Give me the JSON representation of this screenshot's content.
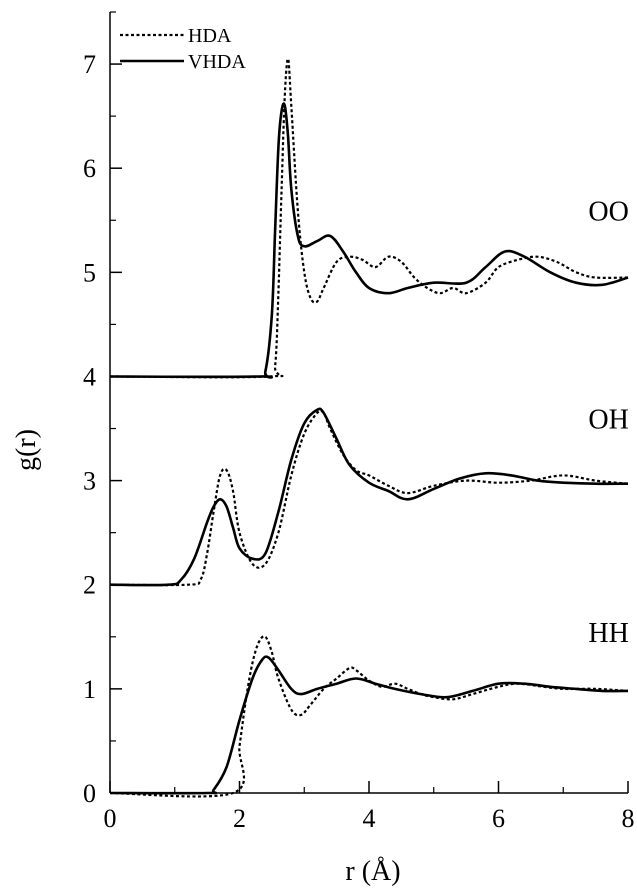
{
  "chart_data": {
    "type": "line",
    "xlabel": "r (Å)",
    "ylabel": "g(r)",
    "xlim": [
      0,
      8
    ],
    "ylim": [
      0,
      7.5
    ],
    "x_ticks": [
      0,
      2,
      4,
      6,
      8
    ],
    "y_ticks": [
      0,
      1,
      2,
      3,
      4,
      5,
      6,
      7
    ],
    "grid": false,
    "legend_position": "top-left",
    "annotations": [
      {
        "text": "OO",
        "x": 7.7,
        "y": 5.5
      },
      {
        "text": "OH",
        "x": 7.7,
        "y": 3.5
      },
      {
        "text": "HH",
        "x": 7.7,
        "y": 1.45
      }
    ],
    "series": [
      {
        "name": "HDA",
        "style": "dotted",
        "group": "OO",
        "x": [
          0,
          2.45,
          2.55,
          2.6,
          2.65,
          2.7,
          2.75,
          2.8,
          2.9,
          3.0,
          3.1,
          3.2,
          3.3,
          3.5,
          3.7,
          3.9,
          4.1,
          4.3,
          4.5,
          4.7,
          4.9,
          5.1,
          5.3,
          5.5,
          5.8,
          6.0,
          6.3,
          6.6,
          6.9,
          7.2,
          7.5,
          8.0
        ],
        "y": [
          4,
          4,
          4.1,
          4.8,
          5.8,
          6.7,
          7.05,
          6.6,
          5.6,
          5.0,
          4.75,
          4.72,
          4.85,
          5.1,
          5.15,
          5.12,
          5.05,
          5.15,
          5.1,
          4.95,
          4.85,
          4.8,
          4.85,
          4.8,
          4.9,
          5.05,
          5.12,
          5.15,
          5.1,
          5.0,
          4.95,
          4.95
        ]
      },
      {
        "name": "VHDA",
        "style": "solid",
        "group": "OO",
        "x": [
          0,
          2.3,
          2.4,
          2.5,
          2.55,
          2.6,
          2.65,
          2.7,
          2.75,
          2.8,
          2.9,
          3.0,
          3.2,
          3.4,
          3.6,
          3.8,
          4.0,
          4.3,
          4.6,
          5.0,
          5.5,
          5.8,
          6.1,
          6.4,
          6.8,
          7.2,
          7.6,
          8.0
        ],
        "y": [
          4,
          4,
          4.05,
          4.6,
          5.4,
          6.2,
          6.55,
          6.6,
          6.3,
          5.8,
          5.35,
          5.25,
          5.3,
          5.35,
          5.2,
          5.0,
          4.85,
          4.8,
          4.85,
          4.9,
          4.9,
          5.05,
          5.2,
          5.15,
          5.0,
          4.9,
          4.88,
          4.95
        ]
      },
      {
        "name": "HDA",
        "style": "dotted",
        "group": "OH",
        "x": [
          0,
          1.2,
          1.4,
          1.5,
          1.6,
          1.7,
          1.8,
          1.9,
          2.0,
          2.2,
          2.4,
          2.6,
          2.8,
          3.0,
          3.2,
          3.3,
          3.4,
          3.6,
          3.8,
          4.0,
          4.3,
          4.6,
          5.0,
          5.5,
          6.0,
          6.5,
          7.0,
          7.5,
          8.0
        ],
        "y": [
          2,
          2,
          2.05,
          2.3,
          2.7,
          3.05,
          3.1,
          2.9,
          2.5,
          2.2,
          2.2,
          2.5,
          3.05,
          3.45,
          3.65,
          3.65,
          3.5,
          3.25,
          3.1,
          3.05,
          2.95,
          2.88,
          2.95,
          3.0,
          2.98,
          3.0,
          3.05,
          3.0,
          2.97
        ]
      },
      {
        "name": "VHDA",
        "style": "solid",
        "group": "OH",
        "x": [
          0,
          0.9,
          1.1,
          1.3,
          1.5,
          1.6,
          1.7,
          1.8,
          1.9,
          2.0,
          2.2,
          2.4,
          2.6,
          2.8,
          3.0,
          3.2,
          3.3,
          3.5,
          3.7,
          4.0,
          4.3,
          4.6,
          5.0,
          5.4,
          5.8,
          6.2,
          6.6,
          7.0,
          7.5,
          8.0
        ],
        "y": [
          2,
          2,
          2.05,
          2.25,
          2.6,
          2.75,
          2.82,
          2.75,
          2.55,
          2.35,
          2.25,
          2.3,
          2.7,
          3.2,
          3.55,
          3.68,
          3.65,
          3.4,
          3.15,
          2.98,
          2.9,
          2.82,
          2.92,
          3.02,
          3.07,
          3.05,
          3.0,
          2.98,
          2.97,
          2.97
        ]
      },
      {
        "name": "HDA",
        "style": "dotted",
        "group": "HH",
        "x": [
          0,
          1.9,
          2.0,
          2.1,
          2.2,
          2.3,
          2.4,
          2.5,
          2.6,
          2.8,
          2.95,
          3.1,
          3.3,
          3.5,
          3.7,
          3.8,
          4.0,
          4.2,
          4.4,
          4.6,
          4.8,
          5.0,
          5.3,
          5.6,
          6.0,
          6.3,
          6.7,
          7.0,
          7.5,
          8.0
        ],
        "y": [
          0,
          0,
          0.45,
          0.9,
          1.25,
          1.45,
          1.5,
          1.35,
          1.1,
          0.8,
          0.75,
          0.85,
          1.0,
          1.1,
          1.2,
          1.18,
          1.08,
          1.02,
          1.05,
          1.0,
          0.95,
          0.92,
          0.9,
          0.95,
          1.02,
          1.05,
          1.02,
          1.0,
          1.0,
          0.98
        ]
      },
      {
        "name": "VHDA",
        "style": "solid",
        "group": "HH",
        "x": [
          0,
          1.5,
          1.6,
          1.8,
          2.0,
          2.2,
          2.35,
          2.45,
          2.6,
          2.8,
          2.95,
          3.2,
          3.5,
          3.8,
          4.1,
          4.4,
          4.8,
          5.2,
          5.6,
          6.0,
          6.4,
          6.8,
          7.2,
          7.6,
          8.0
        ],
        "y": [
          0,
          0,
          0.03,
          0.25,
          0.7,
          1.1,
          1.28,
          1.3,
          1.18,
          1.0,
          0.95,
          1.0,
          1.05,
          1.1,
          1.05,
          1.0,
          0.95,
          0.92,
          0.98,
          1.05,
          1.05,
          1.02,
          1.0,
          0.98,
          0.98
        ]
      }
    ]
  }
}
